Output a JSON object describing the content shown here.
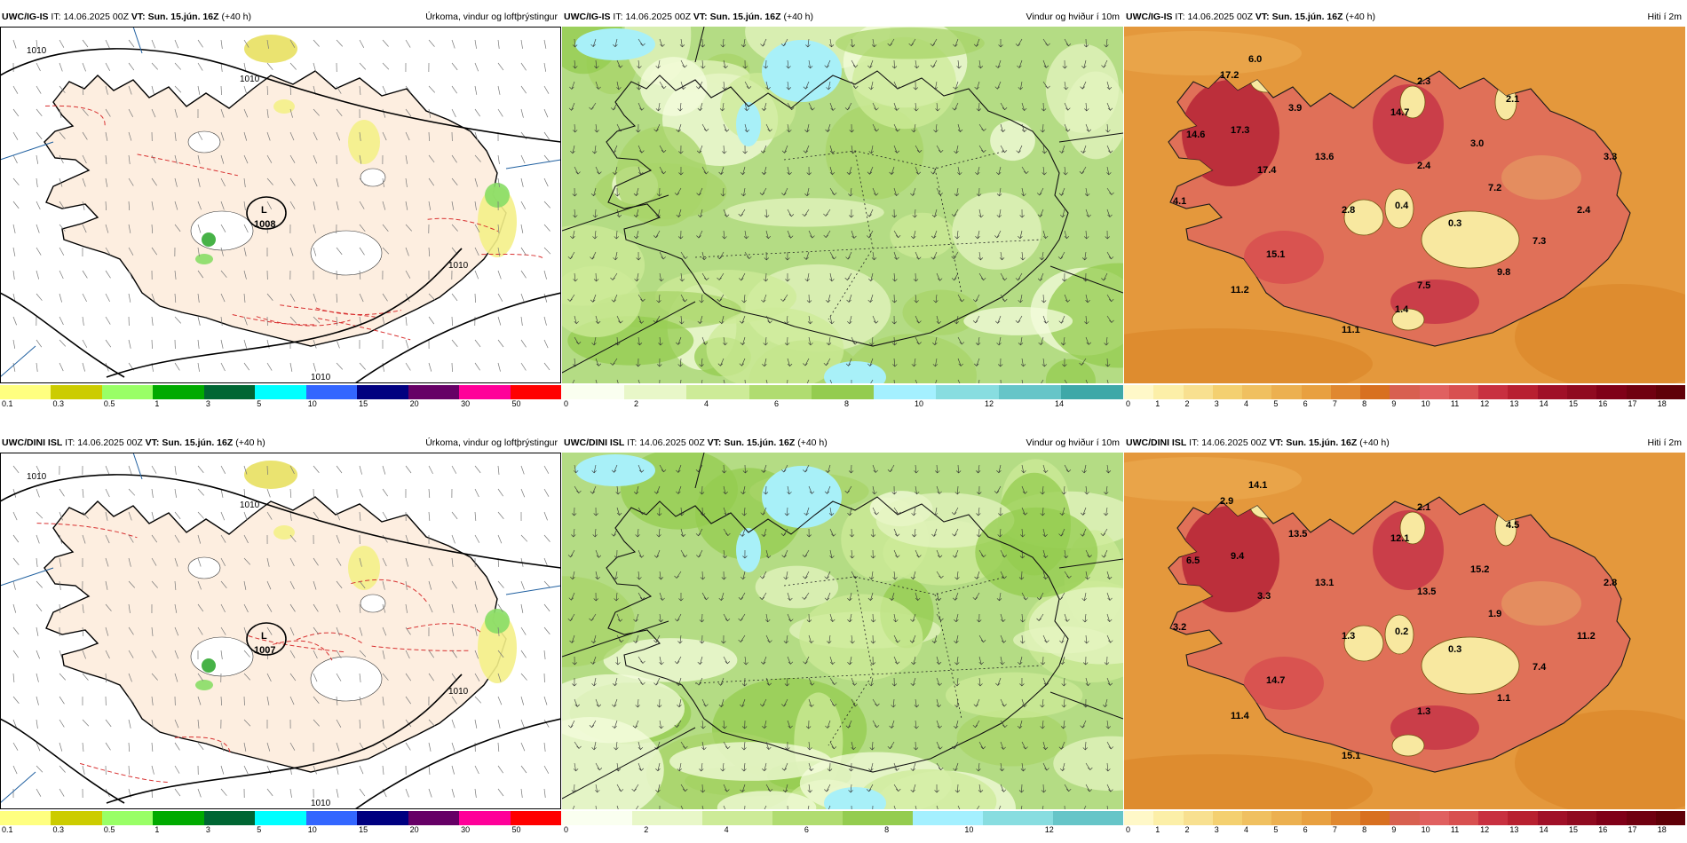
{
  "panels": [
    {
      "id": "p1",
      "model": "UWC/IG-IS",
      "it_label": "IT:",
      "it_value": "14.06.2025 00Z",
      "vt_label": "VT:",
      "vt_value": "Sun. 15.jún. 16Z",
      "lead": "(+40 h)",
      "field_title": "Úrkoma, vindur og loftþrýstingur",
      "kind": "precip",
      "low_label": "L",
      "low_value": "1008",
      "isobars": [
        "1010",
        "1010",
        "1010",
        "1010"
      ],
      "colorbar_colors": [
        "#ffff80",
        "#cccc00",
        "#99ff66",
        "#00aa00",
        "#006633",
        "#00ffff",
        "#3366ff",
        "#000080",
        "#660066",
        "#ff0099",
        "#ff0000"
      ],
      "colorbar_ticks": [
        "0.1",
        "0.3",
        "0.5",
        "1",
        "3",
        "5",
        "10",
        "15",
        "20",
        "30",
        "50"
      ]
    },
    {
      "id": "p2",
      "model": "UWC/IG-IS",
      "it_label": "IT:",
      "it_value": "14.06.2025 00Z",
      "vt_label": "VT:",
      "vt_value": "Sun. 15.jún. 16Z",
      "lead": "(+40 h)",
      "field_title": "Vindur og hviður í 10m",
      "kind": "wind",
      "colorbar_colors": [
        "#fafff0",
        "#e8f7c8",
        "#cdeb98",
        "#b0dc70",
        "#94cc4f",
        "#a4f0ff",
        "#88dde0",
        "#66c5c8",
        "#3ea8a8"
      ],
      "colorbar_ticks": [
        "0",
        "2",
        "4",
        "6",
        "8",
        "10",
        "12",
        "14"
      ]
    },
    {
      "id": "p3",
      "model": "UWC/IG-IS",
      "it_label": "IT:",
      "it_value": "14.06.2025 00Z",
      "vt_label": "VT:",
      "vt_value": "Sun. 15.jún. 16Z",
      "lead": "(+40 h)",
      "field_title": "Hiti í 2m",
      "kind": "temp",
      "temp_labels": [
        "6.0",
        "17.2",
        "3.9",
        "2.3",
        "2.1",
        "14.7",
        "14.6",
        "17.3",
        "13.6",
        "3.0",
        "3.3",
        "17.4",
        "2.4",
        "7.2",
        "4.1",
        "2.8",
        "0.4",
        "0.3",
        "2.4",
        "15.1",
        "7.3",
        "9.8",
        "11.2",
        "7.5",
        "11.1",
        "1.4"
      ],
      "colorbar_colors": [
        "#fff8c8",
        "#fcefa8",
        "#f8e090",
        "#f4d070",
        "#f0c060",
        "#ecb050",
        "#e8a040",
        "#e08830",
        "#d87020",
        "#d86050",
        "#e06060",
        "#d85050",
        "#c83040",
        "#b82030",
        "#a01028",
        "#900a20",
        "#800018",
        "#700010",
        "#600008"
      ],
      "colorbar_ticks": [
        "0",
        "1",
        "2",
        "3",
        "4",
        "5",
        "6",
        "7",
        "8",
        "9",
        "10",
        "11",
        "12",
        "13",
        "14",
        "15",
        "16",
        "17",
        "18"
      ]
    },
    {
      "id": "p4",
      "model": "UWC/DINI ISL",
      "it_label": "IT:",
      "it_value": "14.06.2025 00Z",
      "vt_label": "VT:",
      "vt_value": "Sun. 15.jún. 16Z",
      "lead": "(+40 h)",
      "field_title": "Úrkoma, vindur og loftþrýstingur",
      "kind": "precip",
      "low_label": "L",
      "low_value": "1007",
      "isobars": [
        "1010",
        "1010",
        "1010",
        "1010"
      ],
      "colorbar_colors": [
        "#ffff80",
        "#cccc00",
        "#99ff66",
        "#00aa00",
        "#006633",
        "#00ffff",
        "#3366ff",
        "#000080",
        "#660066",
        "#ff0099",
        "#ff0000"
      ],
      "colorbar_ticks": [
        "0.1",
        "0.3",
        "0.5",
        "1",
        "3",
        "5",
        "10",
        "15",
        "20",
        "30",
        "50"
      ]
    },
    {
      "id": "p5",
      "model": "UWC/DINI ISL",
      "it_label": "IT:",
      "it_value": "14.06.2025 00Z",
      "vt_label": "VT:",
      "vt_value": "Sun. 15.jún. 16Z",
      "lead": "(+40 h)",
      "field_title": "Vindur og hviður í 10m",
      "kind": "wind",
      "colorbar_colors": [
        "#fafff0",
        "#e8f7c8",
        "#cdeb98",
        "#b0dc70",
        "#94cc4f",
        "#a4f0ff",
        "#88dde0",
        "#66c5c8"
      ],
      "colorbar_ticks": [
        "0",
        "2",
        "4",
        "6",
        "8",
        "10",
        "12"
      ]
    },
    {
      "id": "p6",
      "model": "UWC/DINI ISL",
      "it_label": "IT:",
      "it_value": "14.06.2025 00Z",
      "vt_label": "VT:",
      "vt_value": "Sun. 15.jún. 16Z",
      "lead": "(+40 h)",
      "field_title": "Hiti í 2m",
      "kind": "temp",
      "temp_labels": [
        "14.1",
        "2.9",
        "13.5",
        "2.1",
        "4.5",
        "12.1",
        "6.5",
        "9.4",
        "13.1",
        "15.2",
        "2.8",
        "3.3",
        "13.5",
        "1.9",
        "3.2",
        "1.3",
        "0.2",
        "0.3",
        "11.2",
        "14.7",
        "7.4",
        "1.1",
        "11.4",
        "1.3",
        "15.1"
      ],
      "colorbar_colors": [
        "#fff8c8",
        "#fcefa8",
        "#f8e090",
        "#f4d070",
        "#f0c060",
        "#ecb050",
        "#e8a040",
        "#e08830",
        "#d87020",
        "#d86050",
        "#e06060",
        "#d85050",
        "#c83040",
        "#b82030",
        "#a01028",
        "#900a20",
        "#800018",
        "#700010",
        "#600008"
      ],
      "colorbar_ticks": [
        "0",
        "1",
        "2",
        "3",
        "4",
        "5",
        "6",
        "7",
        "8",
        "9",
        "10",
        "11",
        "12",
        "13",
        "14",
        "15",
        "16",
        "17",
        "18"
      ]
    }
  ]
}
